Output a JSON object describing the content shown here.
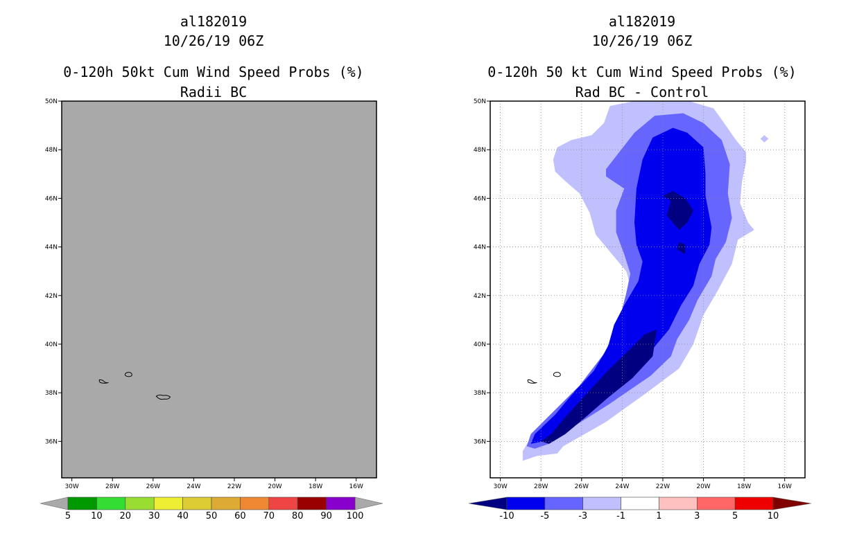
{
  "panels": [
    {
      "storm_id": "al182019",
      "datetime": "10/26/19 06Z",
      "title": "0-120h 50kt Cum Wind Speed Probs (%)",
      "subtitle": "Radii BC"
    },
    {
      "storm_id": "al182019",
      "datetime": "10/26/19 06Z",
      "title": "0-120h 50 kt Cum Wind Speed Probs (%)",
      "subtitle": "Rad BC - Control"
    }
  ],
  "chart_data": [
    {
      "type": "map",
      "background_color": "#a9a9a9",
      "grid": false,
      "lat_range": [
        34.5,
        50
      ],
      "lon_range": [
        -30.5,
        -15
      ],
      "lat_ticks": [
        "50N",
        "48N",
        "46N",
        "44N",
        "42N",
        "40N",
        "38N",
        "36N"
      ],
      "lon_ticks": [
        "30W",
        "28W",
        "26W",
        "24W",
        "22W",
        "20W",
        "18W",
        "16W"
      ],
      "islands": [
        {
          "name": "azores-flores",
          "lon": -28.4,
          "lat": 38.45
        },
        {
          "name": "azores-central",
          "lon": -27.2,
          "lat": 38.75
        },
        {
          "name": "azores-sao-miguel",
          "lon": -25.5,
          "lat": 37.8
        }
      ],
      "colorbar": {
        "labels": [
          "5",
          "10",
          "20",
          "30",
          "40",
          "50",
          "60",
          "70",
          "80",
          "90",
          "100"
        ],
        "colors": [
          "#009900",
          "#33dd33",
          "#99dd33",
          "#eeee33",
          "#ddcc33",
          "#ddaa33",
          "#ee8833",
          "#ee4444",
          "#990000",
          "#8800cc"
        ],
        "below_color": "#a9a9a9",
        "above_color": "#a9a9a9"
      }
    },
    {
      "type": "map",
      "background_color": "#ffffff",
      "grid": true,
      "lat_range": [
        34.5,
        50
      ],
      "lon_range": [
        -30.5,
        -15
      ],
      "lat_ticks": [
        "50N",
        "48N",
        "46N",
        "44N",
        "42N",
        "40N",
        "38N",
        "36N"
      ],
      "lon_ticks": [
        "30W",
        "28W",
        "26W",
        "24W",
        "22W",
        "20W",
        "18W",
        "16W"
      ],
      "islands": [
        {
          "name": "azores-flores",
          "lon": -28.4,
          "lat": 38.45
        },
        {
          "name": "azores-central",
          "lon": -27.2,
          "lat": 38.75
        }
      ],
      "colorbar": {
        "labels": [
          "-10",
          "-5",
          "-3",
          "-1",
          "1",
          "3",
          "5",
          "10"
        ],
        "colors": [
          "#0000ee",
          "#6666ff",
          "#c0c0ff",
          "#ffffff",
          "#ffc0c0",
          "#ff6666",
          "#ee0000"
        ],
        "below_color": "#000080",
        "above_color": "#800000"
      },
      "contours": [
        {
          "level": "-1 to -3",
          "color": "#c0c0ff",
          "points": [
            [
              -24.6,
              49.8
            ],
            [
              -23.4,
              50.0
            ],
            [
              -20.7,
              50.0
            ],
            [
              -19.5,
              49.7
            ],
            [
              -18.9,
              49.0
            ],
            [
              -18.4,
              48.4
            ],
            [
              -17.9,
              47.9
            ],
            [
              -17.9,
              47.5
            ],
            [
              -18.1,
              46.7
            ],
            [
              -18.2,
              45.8
            ],
            [
              -17.8,
              45.0
            ],
            [
              -17.5,
              44.7
            ],
            [
              -18.3,
              44.3
            ],
            [
              -18.6,
              43.3
            ],
            [
              -19.3,
              42.2
            ],
            [
              -20.0,
              41.2
            ],
            [
              -20.5,
              40.0
            ],
            [
              -21.2,
              39.0
            ],
            [
              -22.8,
              38.0
            ],
            [
              -24.8,
              36.8
            ],
            [
              -26.9,
              35.8
            ],
            [
              -27.2,
              35.5
            ],
            [
              -28.2,
              35.4
            ],
            [
              -28.9,
              35.2
            ],
            [
              -28.9,
              35.6
            ],
            [
              -28.4,
              36.3
            ],
            [
              -27.2,
              37.1
            ],
            [
              -25.9,
              38.1
            ],
            [
              -24.9,
              39.2
            ],
            [
              -24.2,
              40.2
            ],
            [
              -23.7,
              41.2
            ],
            [
              -23.5,
              42.1
            ],
            [
              -23.8,
              43.0
            ],
            [
              -24.6,
              43.8
            ],
            [
              -25.3,
              44.5
            ],
            [
              -25.6,
              45.4
            ],
            [
              -26.1,
              46.2
            ],
            [
              -26.8,
              46.7
            ],
            [
              -27.3,
              47.1
            ],
            [
              -27.4,
              47.6
            ],
            [
              -27.2,
              48.1
            ],
            [
              -26.5,
              48.4
            ],
            [
              -25.5,
              48.6
            ],
            [
              -24.9,
              49.1
            ]
          ]
        },
        {
          "level": "-3 to -5",
          "color": "#6666ff",
          "points": [
            [
              -24.8,
              47.2
            ],
            [
              -23.4,
              48.7
            ],
            [
              -22.4,
              49.4
            ],
            [
              -21.0,
              49.5
            ],
            [
              -20.0,
              49.1
            ],
            [
              -19.1,
              48.4
            ],
            [
              -18.7,
              47.4
            ],
            [
              -18.8,
              46.2
            ],
            [
              -18.6,
              45.2
            ],
            [
              -18.9,
              44.2
            ],
            [
              -19.4,
              43.5
            ],
            [
              -19.6,
              42.8
            ],
            [
              -20.3,
              41.8
            ],
            [
              -20.7,
              41.0
            ],
            [
              -21.3,
              40.2
            ],
            [
              -21.6,
              39.5
            ],
            [
              -22.6,
              38.7
            ],
            [
              -24.7,
              37.5
            ],
            [
              -26.6,
              36.5
            ],
            [
              -27.6,
              35.9
            ],
            [
              -28.3,
              35.7
            ],
            [
              -28.7,
              35.8
            ],
            [
              -28.5,
              36.3
            ],
            [
              -27.3,
              37.3
            ],
            [
              -26.1,
              38.3
            ],
            [
              -24.9,
              39.6
            ],
            [
              -24.2,
              40.8
            ],
            [
              -23.8,
              42.1
            ],
            [
              -23.6,
              42.9
            ],
            [
              -23.9,
              43.7
            ],
            [
              -24.3,
              44.6
            ],
            [
              -24.3,
              45.5
            ],
            [
              -23.9,
              46.4
            ],
            [
              -24.8,
              46.9
            ]
          ]
        },
        {
          "level": "-5 to -10",
          "color": "#0000ee",
          "points": [
            [
              -23.3,
              46.4
            ],
            [
              -23.0,
              47.6
            ],
            [
              -22.5,
              48.5
            ],
            [
              -21.5,
              48.9
            ],
            [
              -20.8,
              48.7
            ],
            [
              -20.0,
              48.1
            ],
            [
              -19.9,
              47.0
            ],
            [
              -19.9,
              46.1
            ],
            [
              -19.6,
              44.8
            ],
            [
              -19.7,
              44.1
            ],
            [
              -20.2,
              43.3
            ],
            [
              -20.5,
              42.4
            ],
            [
              -21.1,
              41.6
            ],
            [
              -21.7,
              40.6
            ],
            [
              -22.5,
              39.8
            ],
            [
              -23.0,
              39.2
            ],
            [
              -24.5,
              38.3
            ],
            [
              -25.8,
              37.3
            ],
            [
              -27.2,
              36.3
            ],
            [
              -27.9,
              36.0
            ],
            [
              -28.5,
              35.9
            ],
            [
              -28.3,
              36.3
            ],
            [
              -27.3,
              37.1
            ],
            [
              -26.3,
              38.1
            ],
            [
              -25.4,
              38.9
            ],
            [
              -24.7,
              39.9
            ],
            [
              -24.4,
              40.8
            ],
            [
              -23.9,
              41.6
            ],
            [
              -23.2,
              42.6
            ],
            [
              -23.0,
              43.4
            ],
            [
              -23.3,
              44.1
            ],
            [
              -23.4,
              45.0
            ]
          ]
        },
        {
          "level": "< -10",
          "color": "#000080",
          "points": [
            [
              -22.3,
              40.6
            ],
            [
              -22.9,
              40.4
            ],
            [
              -23.6,
              39.8
            ],
            [
              -24.6,
              39.0
            ],
            [
              -25.6,
              38.1
            ],
            [
              -26.8,
              37.0
            ],
            [
              -27.5,
              36.3
            ],
            [
              -28.0,
              36.0
            ],
            [
              -27.6,
              35.9
            ],
            [
              -26.8,
              36.3
            ],
            [
              -25.8,
              37.0
            ],
            [
              -24.7,
              37.8
            ],
            [
              -23.5,
              38.6
            ],
            [
              -22.5,
              39.5
            ]
          ]
        },
        {
          "level": "< -10",
          "color": "#000080",
          "points": [
            [
              -21.5,
              46.3
            ],
            [
              -22.0,
              46.1
            ],
            [
              -21.6,
              45.9
            ],
            [
              -21.8,
              45.3
            ],
            [
              -21.2,
              44.7
            ],
            [
              -20.8,
              45.0
            ],
            [
              -20.5,
              45.5
            ],
            [
              -20.9,
              46.0
            ]
          ]
        },
        {
          "level": "< -10",
          "color": "#000080",
          "points": [
            [
              -21.2,
              44.2
            ],
            [
              -20.9,
              44.1
            ],
            [
              -20.9,
              43.7
            ],
            [
              -21.3,
              43.9
            ]
          ]
        },
        {
          "level": "-1 to -3",
          "color": "#c0c0ff",
          "points": [
            [
              -17.0,
              48.6
            ],
            [
              -16.8,
              48.45
            ],
            [
              -17.0,
              48.3
            ],
            [
              -17.2,
              48.45
            ]
          ]
        }
      ]
    }
  ]
}
